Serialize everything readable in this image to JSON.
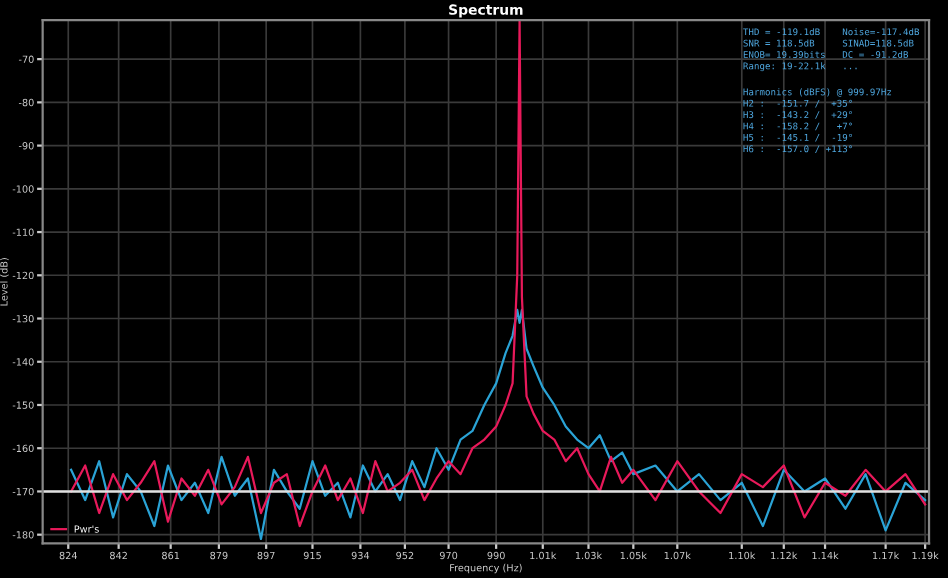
{
  "chart_data": {
    "type": "line",
    "title": "Spectrum",
    "xlabel": "Frequency (Hz)",
    "ylabel": "Level (dB)",
    "log": "x",
    "grid": true,
    "legend": "bottom left",
    "line_style": "solid",
    "marker": "none",
    "xlim": [
      815,
      1192
    ],
    "ylim": [
      -182,
      -61
    ],
    "xticks": [
      824,
      842,
      861,
      879,
      897,
      915,
      934,
      952,
      970,
      990,
      {
        "value": 1010,
        "label": "1.01k"
      },
      {
        "value": 1030,
        "label": "1.03k"
      },
      {
        "value": 1050,
        "label": "1.05k"
      },
      {
        "value": 1070,
        "label": "1.07k"
      },
      {
        "value": 1100,
        "label": "1.10k"
      },
      {
        "value": 1120,
        "label": "1.12k"
      },
      {
        "value": 1140,
        "label": "1.14k"
      },
      {
        "value": 1170,
        "label": "1.17k"
      },
      {
        "value": 1190,
        "label": "1.19k"
      }
    ],
    "yticks": [
      -70,
      -80,
      -90,
      -100,
      -110,
      -120,
      -130,
      -140,
      -150,
      -160,
      -170,
      -180
    ],
    "x": [
      825,
      830,
      835,
      840,
      845,
      850,
      855,
      860,
      865,
      870,
      875,
      880,
      885,
      890,
      895,
      900,
      905,
      910,
      915,
      920,
      925,
      930,
      935,
      940,
      945,
      950,
      955,
      960,
      965,
      970,
      975,
      980,
      985,
      990,
      994,
      997,
      999,
      1000,
      1001,
      1003,
      1006,
      1010,
      1015,
      1020,
      1025,
      1030,
      1035,
      1040,
      1045,
      1050,
      1060,
      1070,
      1080,
      1090,
      1100,
      1110,
      1120,
      1130,
      1140,
      1150,
      1160,
      1170,
      1180,
      1190
    ],
    "series": [
      {
        "color": "#2aa3d6",
        "values": [
          -165,
          -172,
          -163,
          -176,
          -166,
          -170,
          -178,
          -164,
          -172,
          -168,
          -175,
          -162,
          -171,
          -167,
          -181,
          -165,
          -170,
          -174,
          -163,
          -171,
          -168,
          -176,
          -164,
          -170,
          -166,
          -172,
          -163,
          -169,
          -160,
          -165,
          -158,
          -156,
          -150,
          -145,
          -138,
          -134,
          -128,
          -131,
          -128,
          -137,
          -141,
          -146,
          -150,
          -155,
          -158,
          -160,
          -157,
          -163,
          -161,
          -166,
          -164,
          -170,
          -166,
          -172,
          -168,
          -178,
          -165,
          -170,
          -167,
          -174,
          -166,
          -179,
          -168,
          -172
        ]
      },
      {
        "name": "Pwr's",
        "color": "#e8195a",
        "values": [
          -170,
          -164,
          -175,
          -166,
          -172,
          -168,
          -163,
          -177,
          -167,
          -171,
          -165,
          -173,
          -169,
          -162,
          -175,
          -168,
          -166,
          -178,
          -170,
          -164,
          -172,
          -167,
          -175,
          -163,
          -170,
          -168,
          -165,
          -172,
          -167,
          -163,
          -166,
          -160,
          -158,
          -155,
          -150,
          -145,
          -120,
          -61,
          -125,
          -148,
          -152,
          -156,
          -158,
          -163,
          -160,
          -166,
          -170,
          -162,
          -168,
          -165,
          -172,
          -163,
          -170,
          -175,
          -166,
          -169,
          -164,
          -176,
          -168,
          -171,
          -165,
          -170,
          -166,
          -173
        ]
      }
    ],
    "ref_lines": [
      {
        "axis": "y",
        "value": -170,
        "color": "#e0e0e0"
      }
    ],
    "annotations": [
      "THD = -119.1dB    Noise=-117.4dB\nSNR = 118.5dB     SINAD=118.5dB\nENOB= 19.39bits   DC = -91.2dB\nRange: 19-22.1k   ...",
      "Harmonics (dBFS) @ 999.97Hz\nH2 :  -151.7 /  +35°\nH3 :  -143.2 /  +29°\nH4 :  -158.2 /   +7°\nH5 :  -145.1 /  -19°\nH6 :  -157.0 / +113°"
    ]
  }
}
